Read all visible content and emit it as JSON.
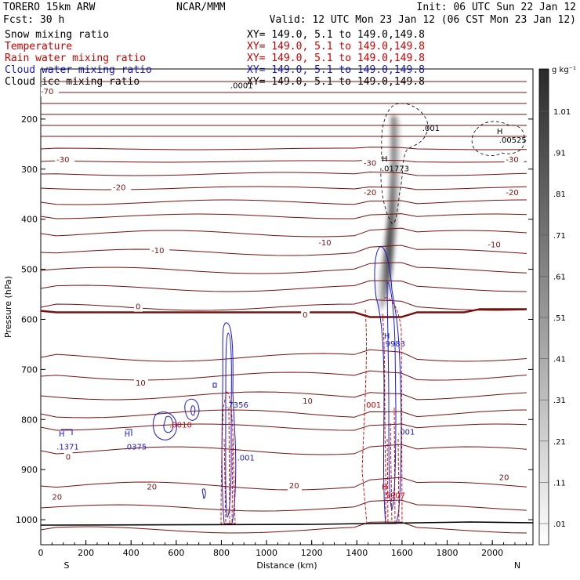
{
  "header": {
    "model": "TORERO  15km ARW",
    "org": "NCAR/MMM",
    "init": "Init: 06 UTC Sun 22 Jan 12",
    "fcst": "Fcst:   30 h",
    "valid": "Valid: 12 UTC Mon 23 Jan 12 (06 CST Mon 23 Jan 12)",
    "legend": [
      {
        "label": "Snow mixing ratio",
        "xy": "XY= 149.0,  5.1 to 149.0,149.8",
        "color": "#000000"
      },
      {
        "label": "Temperature",
        "xy": "XY= 149.0,  5.1 to 149.0,149.8",
        "color": "#cc0000"
      },
      {
        "label": "Rain water mixing ratio",
        "xy": "XY= 149.0,  5.1 to 149.0,149.8",
        "color": "#cc0000"
      },
      {
        "label": "Cloud water mixing ratio",
        "xy": "XY= 149.0,  5.1 to 149.0,149.8",
        "color": "#1a1acc"
      },
      {
        "label": "Cloud ice mixing ratio",
        "xy": "XY= 149.0,  5.1 to 149.0,149.8",
        "color": "#000000"
      }
    ]
  },
  "chart_data": {
    "type": "contour cross-section",
    "xlabel": "Distance (km)",
    "ylabel": "Pressure (hPa)",
    "xlim": [
      0,
      2180
    ],
    "ylim": [
      1050,
      100
    ],
    "x_ticks": [
      0,
      200,
      400,
      600,
      800,
      1000,
      1200,
      1400,
      1600,
      1800,
      2000
    ],
    "y_ticks": [
      200,
      300,
      400,
      500,
      600,
      700,
      800,
      900,
      1000
    ],
    "end_labels": {
      "left": "S",
      "right": "N"
    },
    "colorbar": {
      "unit": "g kg⁻¹",
      "ticks": [
        ".01",
        ".11",
        ".21",
        ".31",
        ".41",
        ".51",
        ".61",
        ".71",
        ".81",
        ".91",
        "1.01"
      ]
    },
    "temperature_labels": [
      {
        "text": "-70",
        "x": 0,
        "p": 150
      },
      {
        "text": "-30",
        "x": 70,
        "p": 286
      },
      {
        "text": "-30",
        "x": 1430,
        "p": 293
      },
      {
        "text": "-30",
        "x": 2060,
        "p": 286
      },
      {
        "text": "-20",
        "x": 320,
        "p": 342
      },
      {
        "text": "-20",
        "x": 1430,
        "p": 352
      },
      {
        "text": "-20",
        "x": 2060,
        "p": 352
      },
      {
        "text": "-10",
        "x": 490,
        "p": 468
      },
      {
        "text": "-10",
        "x": 1230,
        "p": 452
      },
      {
        "text": "-10",
        "x": 1980,
        "p": 456
      },
      {
        "text": "0",
        "x": 420,
        "p": 580
      },
      {
        "text": "0",
        "x": 1160,
        "p": 596
      },
      {
        "text": "10",
        "x": 420,
        "p": 732
      },
      {
        "text": "10",
        "x": 1160,
        "p": 768
      },
      {
        "text": "0",
        "x": 110,
        "p": 880
      },
      {
        "text": "20",
        "x": 50,
        "p": 960
      },
      {
        "text": "20",
        "x": 470,
        "p": 940
      },
      {
        "text": "20",
        "x": 1100,
        "p": 937
      },
      {
        "text": "20",
        "x": 2030,
        "p": 921
      }
    ],
    "field_annotations": [
      {
        "text": ".0001",
        "x": 840,
        "p": 138,
        "color": "#000000"
      },
      {
        "text": "H",
        "x": 1510,
        "p": 285,
        "color": "#000000"
      },
      {
        "text": ".01773",
        "x": 1510,
        "p": 304,
        "color": "#000000"
      },
      {
        "text": ".001",
        "x": 1690,
        "p": 224,
        "color": "#000000"
      },
      {
        "text": "H",
        "x": 2020,
        "p": 230,
        "color": "#000000"
      },
      {
        "text": ".00525",
        "x": 2030,
        "p": 247,
        "color": "#000000"
      },
      {
        "text": "H",
        "x": 80,
        "p": 834,
        "color": "#1a1acc"
      },
      {
        "text": ".1371",
        "x": 70,
        "p": 860,
        "color": "#1a1acc"
      },
      {
        "text": "H",
        "x": 370,
        "p": 834,
        "color": "#1a1acc"
      },
      {
        "text": ".0375",
        "x": 370,
        "p": 860,
        "color": "#1a1acc"
      },
      {
        "text": ".0010",
        "x": 570,
        "p": 816,
        "color": "#cc0000"
      },
      {
        "text": ".7356",
        "x": 820,
        "p": 776,
        "color": "#1a1acc"
      },
      {
        "text": ".001",
        "x": 870,
        "p": 882,
        "color": "#1a1acc"
      },
      {
        "text": ".001",
        "x": 1430,
        "p": 776,
        "color": "#cc0000"
      },
      {
        "text": ".001",
        "x": 1580,
        "p": 830,
        "color": "#1a1acc"
      },
      {
        "text": "H",
        "x": 1520,
        "p": 638,
        "color": "#1a1acc"
      },
      {
        "text": ".9983",
        "x": 1515,
        "p": 654,
        "color": "#1a1acc"
      },
      {
        "text": "H",
        "x": 1510,
        "p": 940,
        "color": "#cc0000"
      },
      {
        "text": ".5907",
        "x": 1515,
        "p": 957,
        "color": "#cc0000"
      }
    ]
  }
}
